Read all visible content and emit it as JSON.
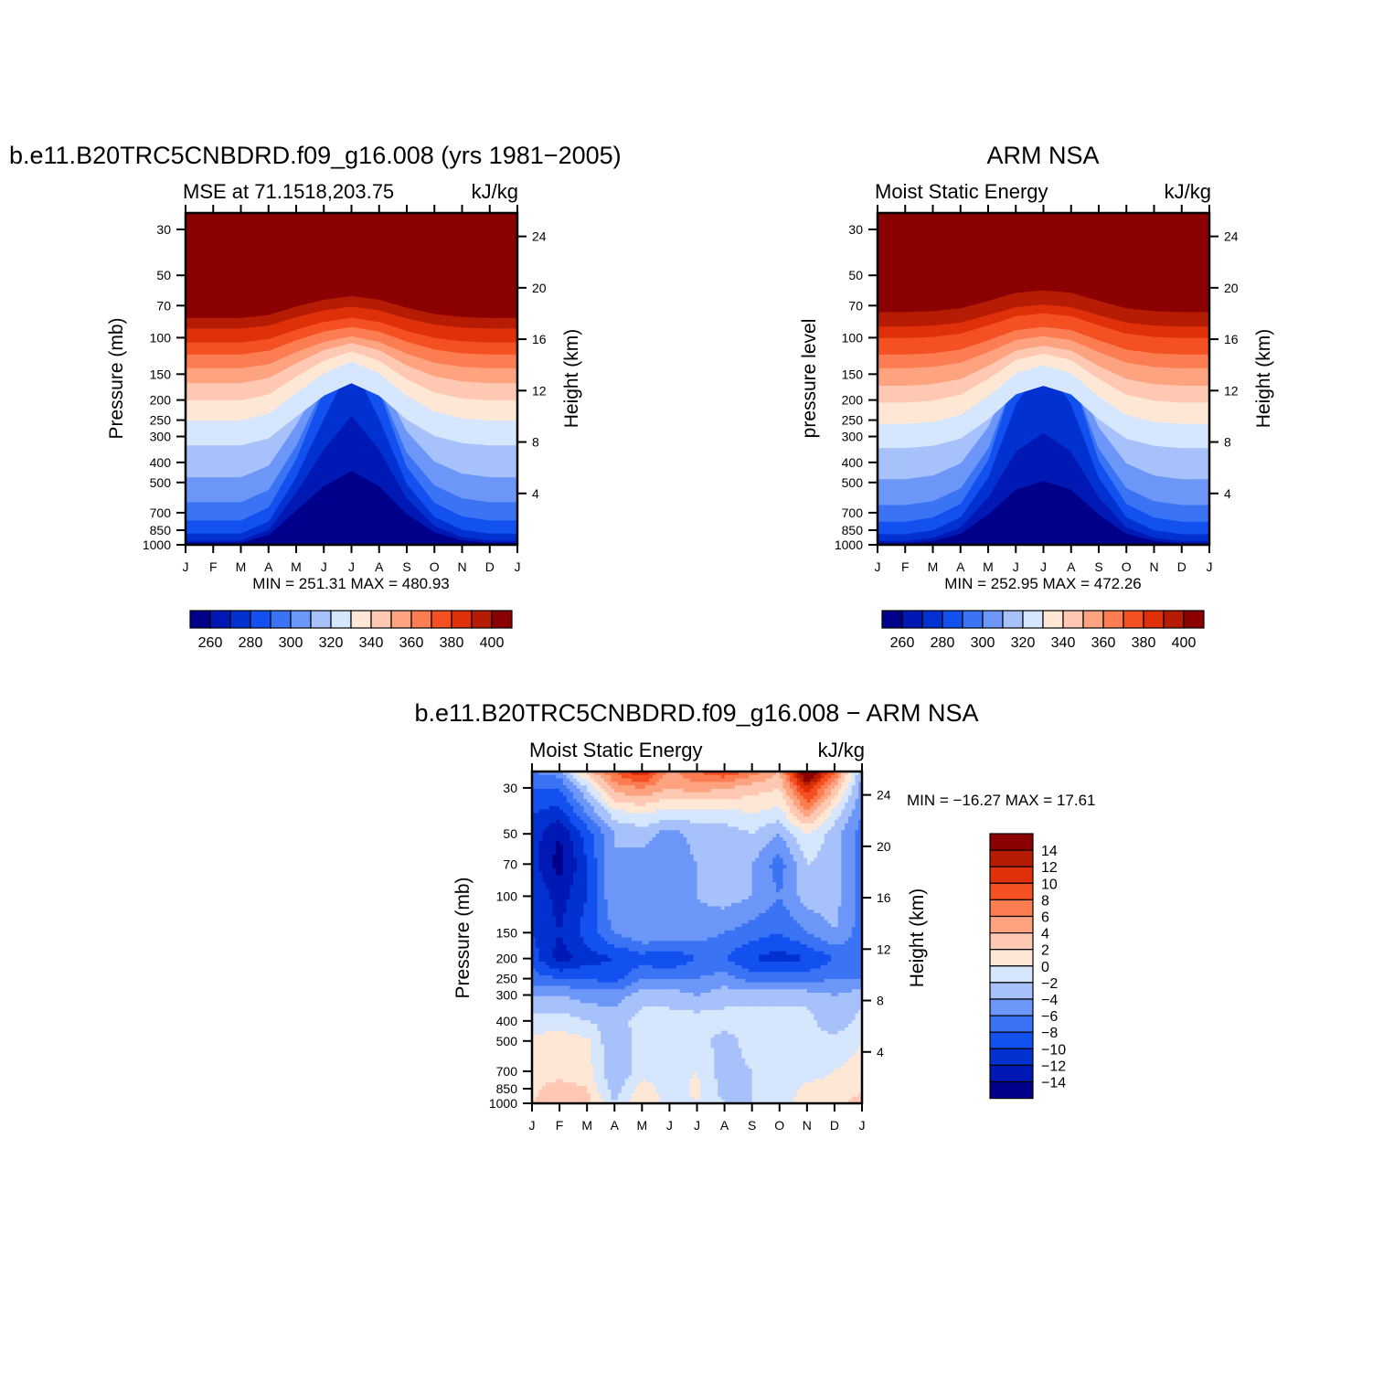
{
  "chart_data": [
    {
      "type": "heatmap",
      "title": "b.e11.B20TRC5CNBDRD.f09_g16.008 (yrs 1981−2005)",
      "subtitle_left": "MSE at 71.1518,203.75",
      "subtitle_right": "kJ/kg",
      "xlabel": "",
      "ylabel": "Pressure (mb)",
      "ylabel_right": "Height (km)",
      "x_ticks": [
        "J",
        "F",
        "M",
        "A",
        "M",
        "J",
        "J",
        "A",
        "S",
        "O",
        "N",
        "D",
        "J"
      ],
      "y_ticks": [
        30,
        50,
        70,
        100,
        150,
        200,
        250,
        300,
        400,
        500,
        700,
        850,
        1000
      ],
      "y_ticks_right": [
        24,
        20,
        16,
        12,
        8,
        4
      ],
      "y_scale": "log (pressure)",
      "ylim": [
        1000,
        25
      ],
      "stats": "MIN = 251.31 MAX = 480.93",
      "colorbar_labels": [
        "260",
        "280",
        "300",
        "320",
        "340",
        "360",
        "380",
        "400"
      ],
      "levels": [
        250,
        260,
        270,
        280,
        290,
        300,
        310,
        320,
        330,
        340,
        350,
        360,
        370,
        380,
        390,
        400
      ],
      "level_pressures": [
        1000,
        975,
        950,
        880,
        760,
        620,
        470,
        330,
        250,
        200,
        165,
        140,
        120,
        105,
        90,
        80
      ],
      "column_shift": [
        0,
        0,
        0,
        0.15,
        0.55,
        0.85,
        1,
        0.85,
        0.5,
        0.2,
        0.05,
        0,
        0
      ],
      "shift_scale": [
        0.3,
        0.55,
        0.75,
        0.85,
        0.9,
        0.85,
        0.8,
        0.5,
        0.4,
        0.35,
        0.3,
        0.25,
        0.22,
        0.2,
        0.18,
        0.18
      ]
    },
    {
      "type": "heatmap",
      "title": "ARM NSA",
      "subtitle_left": "Moist Static Energy",
      "subtitle_right": "kJ/kg",
      "xlabel": "",
      "ylabel": "pressure level",
      "ylabel_right": "Height (km)",
      "x_ticks": [
        "J",
        "F",
        "M",
        "A",
        "M",
        "J",
        "J",
        "A",
        "S",
        "O",
        "N",
        "D",
        "J"
      ],
      "y_ticks": [
        30,
        50,
        70,
        100,
        150,
        200,
        250,
        300,
        400,
        500,
        700,
        850,
        1000
      ],
      "y_ticks_right": [
        24,
        20,
        16,
        12,
        8,
        4
      ],
      "y_scale": "log (pressure)",
      "ylim": [
        1000,
        25
      ],
      "stats": "MIN = 252.95 MAX = 472.26",
      "colorbar_labels": [
        "260",
        "280",
        "300",
        "320",
        "340",
        "360",
        "380",
        "400"
      ],
      "levels": [
        250,
        260,
        270,
        280,
        290,
        300,
        310,
        320,
        330,
        340,
        350,
        360,
        370,
        380,
        390,
        400
      ],
      "level_pressures": [
        1000,
        980,
        955,
        885,
        770,
        640,
        480,
        340,
        260,
        205,
        170,
        140,
        120,
        100,
        88,
        75
      ],
      "column_shift": [
        0,
        0,
        0.05,
        0.2,
        0.55,
        0.9,
        1,
        0.9,
        0.55,
        0.2,
        0.05,
        0,
        0
      ],
      "shift_scale": [
        0.3,
        0.5,
        0.7,
        0.85,
        0.9,
        0.85,
        0.8,
        0.5,
        0.4,
        0.35,
        0.3,
        0.25,
        0.22,
        0.2,
        0.18,
        0.18
      ]
    },
    {
      "type": "heatmap",
      "title": "b.e11.B20TRC5CNBDRD.f09_g16.008 − ARM NSA",
      "subtitle_left": "Moist Static Energy",
      "subtitle_right": "kJ/kg",
      "xlabel": "",
      "ylabel": "Pressure (mb)",
      "ylabel_right": "Height (km)",
      "x_ticks": [
        "J",
        "F",
        "M",
        "A",
        "M",
        "J",
        "J",
        "A",
        "S",
        "O",
        "N",
        "D",
        "J"
      ],
      "y_ticks": [
        30,
        50,
        70,
        100,
        150,
        200,
        250,
        300,
        400,
        500,
        700,
        850,
        1000
      ],
      "y_ticks_right": [
        24,
        20,
        16,
        12,
        8,
        4
      ],
      "y_scale": "log (pressure)",
      "ylim": [
        1000,
        25
      ],
      "stats": "MIN = −16.27 MAX = 17.61",
      "colorbar_labels": [
        "14",
        "12",
        "10",
        "8",
        "6",
        "4",
        "2",
        "0",
        "−2",
        "−4",
        "−6",
        "−8",
        "−10",
        "−12",
        "−14"
      ],
      "levels": [
        -16,
        -14,
        -12,
        -10,
        -8,
        -6,
        -4,
        -2,
        0,
        2,
        4,
        6,
        8,
        10,
        12,
        14,
        16
      ],
      "grid_x": [
        0,
        1,
        2,
        3,
        4,
        5,
        6,
        7,
        8,
        9,
        10,
        11,
        12
      ],
      "grid_p": [
        25,
        30,
        40,
        50,
        70,
        100,
        150,
        200,
        250,
        300,
        400,
        500,
        700,
        850,
        1000
      ],
      "grid_values": [
        [
          -6,
          -5,
          3,
          8,
          12,
          5,
          8,
          10,
          7,
          4,
          18,
          8,
          -4
        ],
        [
          -8,
          -8,
          -2,
          5,
          6,
          4,
          5,
          4,
          3,
          2,
          12,
          4,
          -5
        ],
        [
          -10,
          -11,
          -6,
          -1,
          0,
          -1,
          -1,
          -1,
          0,
          -1,
          5,
          -1,
          -6
        ],
        [
          -11,
          -14,
          -9,
          -4,
          -3,
          -5,
          -3,
          -3,
          -2,
          -4,
          0,
          -3,
          -7
        ],
        [
          -11,
          -15,
          -10,
          -4,
          -5,
          -6,
          -4,
          -3,
          -4,
          -7,
          -2,
          -3,
          -7
        ],
        [
          -10,
          -13,
          -10,
          -4,
          -4,
          -4,
          -4,
          -3,
          -4,
          -6,
          -3,
          -3,
          -7
        ],
        [
          -10,
          -12,
          -9,
          -6,
          -4,
          -4,
          -5,
          -6,
          -7,
          -8,
          -6,
          -4,
          -7
        ],
        [
          -9,
          -13,
          -11,
          -10,
          -9,
          -10,
          -8,
          -8,
          -10,
          -11,
          -10,
          -8,
          -7
        ],
        [
          -7,
          -8,
          -8,
          -9,
          -6,
          -6,
          -6,
          -5,
          -7,
          -7,
          -7,
          -6,
          -6
        ],
        [
          -4,
          -4,
          -5,
          -5,
          -3,
          -3,
          -4,
          -3,
          -3,
          -3,
          -3,
          -4,
          -3
        ],
        [
          -1,
          -1,
          -2,
          -3,
          -1,
          -1,
          -1,
          -1,
          -1,
          -1,
          -1,
          -4,
          -1
        ],
        [
          0.5,
          1,
          0.5,
          -4,
          -1,
          -1,
          -1,
          -3,
          -1,
          -1,
          -1,
          -1,
          0
        ],
        [
          1,
          1,
          1,
          -4,
          -1,
          -1,
          0,
          -3,
          -2,
          -1,
          -1,
          0,
          0.5
        ],
        [
          1.5,
          3,
          2,
          -3,
          1,
          -1,
          0.5,
          -3,
          -2,
          -1,
          0.5,
          1,
          1.5
        ],
        [
          2,
          3,
          3,
          -2,
          2,
          -1,
          0,
          -2,
          -2,
          -1,
          1,
          1,
          3
        ]
      ]
    }
  ],
  "colors": {
    "scale_16": [
      "#00008B",
      "#0019B4",
      "#0131D0",
      "#1350F0",
      "#3A74F5",
      "#6C96F8",
      "#A7C1FB",
      "#D6E6FC",
      "#FFE7D6",
      "#FFC8B2",
      "#FDA380",
      "#FB7D51",
      "#F45022",
      "#E03009",
      "#B61C03",
      "#8B0000"
    ],
    "diff_16": [
      "#00008B",
      "#0019B4",
      "#0131D0",
      "#1350F0",
      "#3A74F5",
      "#6C96F8",
      "#A7C1FB",
      "#D6E6FC",
      "#FFE7D6",
      "#FFC8B2",
      "#FDA380",
      "#FB7D51",
      "#F45022",
      "#E03009",
      "#B61C03",
      "#8B0000"
    ]
  }
}
